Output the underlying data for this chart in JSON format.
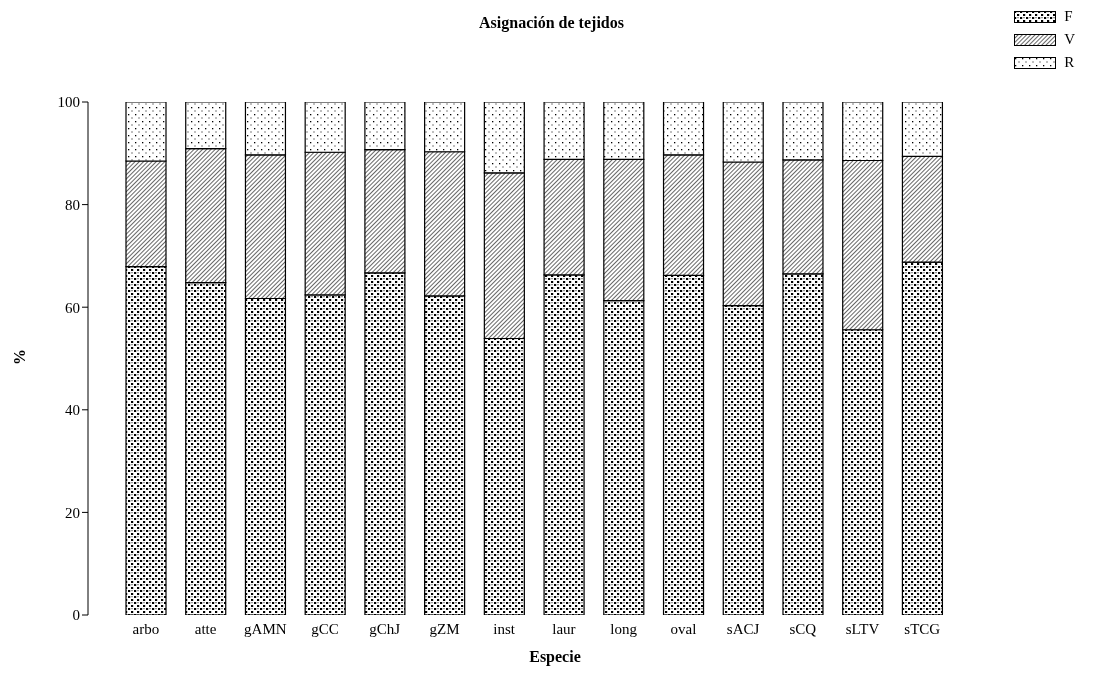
{
  "chart_data": {
    "type": "bar",
    "title": "Asignación de tejidos",
    "xlabel": "Especie",
    "ylabel": "%",
    "categories": [
      "arbo",
      "atte",
      "gAMN",
      "gCC",
      "gChJ",
      "gZM",
      "inst",
      "laur",
      "long",
      "oval",
      "sACJ",
      "sCQ",
      "sLTV",
      "sTCG"
    ],
    "stacked": true,
    "series": [
      {
        "name": "F",
        "color": "#000000",
        "values": [
          67.9,
          64.8,
          61.7,
          62.4,
          66.7,
          62.2,
          53.9,
          66.3,
          61.3,
          66.2,
          60.3,
          66.5,
          55.6,
          68.8
        ]
      },
      {
        "name": "V",
        "color": "#000000",
        "values": [
          20.6,
          26.1,
          28.0,
          27.8,
          24.0,
          28.1,
          32.3,
          22.5,
          27.5,
          23.5,
          28.0,
          22.2,
          33.0,
          20.6
        ]
      },
      {
        "name": "R",
        "color": "#000000",
        "values": [
          11.5,
          9.1,
          10.3,
          9.8,
          9.3,
          9.7,
          13.8,
          11.2,
          11.2,
          10.3,
          11.7,
          11.3,
          11.4,
          10.6
        ]
      }
    ],
    "ylim": [
      0,
      100
    ],
    "yticks": [
      0,
      20,
      40,
      60,
      80,
      100
    ],
    "grid": false,
    "legend": "top right"
  }
}
